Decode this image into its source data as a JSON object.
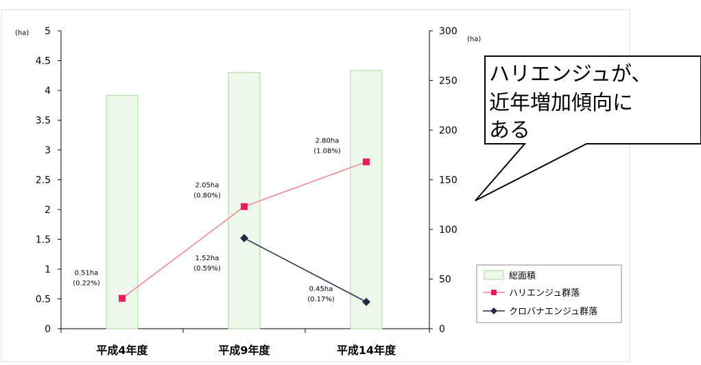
{
  "chart_data": {
    "type": "bar",
    "categories": [
      "平成4年度",
      "平成9年度",
      "平成14年度"
    ],
    "left_axis": {
      "unit": "(ha)",
      "range": [
        0,
        5
      ],
      "ticks": [
        "0",
        "0.5",
        "1",
        "1.5",
        "2",
        "2.5",
        "3",
        "3.5",
        "4",
        "4.5",
        "5"
      ]
    },
    "right_axis": {
      "unit": "(ha)",
      "range": [
        0,
        300
      ],
      "ticks": [
        "0",
        "50",
        "100",
        "150",
        "200",
        "250",
        "300"
      ]
    },
    "series": [
      {
        "name": "総面積",
        "kind": "bar",
        "axis": "right",
        "color": "#eef8ea",
        "stroke": "#a8d79a",
        "values": [
          235,
          258,
          260
        ]
      },
      {
        "name": "ハリエンジュ群落",
        "kind": "line",
        "axis": "left",
        "color": "#f08090",
        "marker": "square",
        "marker_color": "#ec1c5c",
        "values": [
          0.51,
          2.05,
          2.8
        ],
        "labels": [
          [
            "0.51ha",
            "(0.22%)"
          ],
          [
            "2.05ha",
            "(0.80%)"
          ],
          [
            "2.80ha",
            "(1.08%)"
          ]
        ]
      },
      {
        "name": "クロバナエンジュ群落",
        "kind": "line",
        "axis": "left",
        "color": "#1e2a44",
        "marker": "diamond",
        "marker_color": "#1e2a44",
        "values": [
          null,
          1.52,
          0.45
        ],
        "labels": [
          null,
          [
            "1.52ha",
            "(0.59%)"
          ],
          [
            "0.45ha",
            "(0.17%)"
          ]
        ]
      }
    ],
    "legend": {
      "position": "right",
      "items": [
        "総面積",
        "ハリエンジュ群落",
        "クロバナエンジュ群落"
      ]
    },
    "grid": false
  },
  "callout": {
    "lines": [
      "ハリエンジュが、",
      "近年増加傾向に",
      "ある"
    ]
  }
}
